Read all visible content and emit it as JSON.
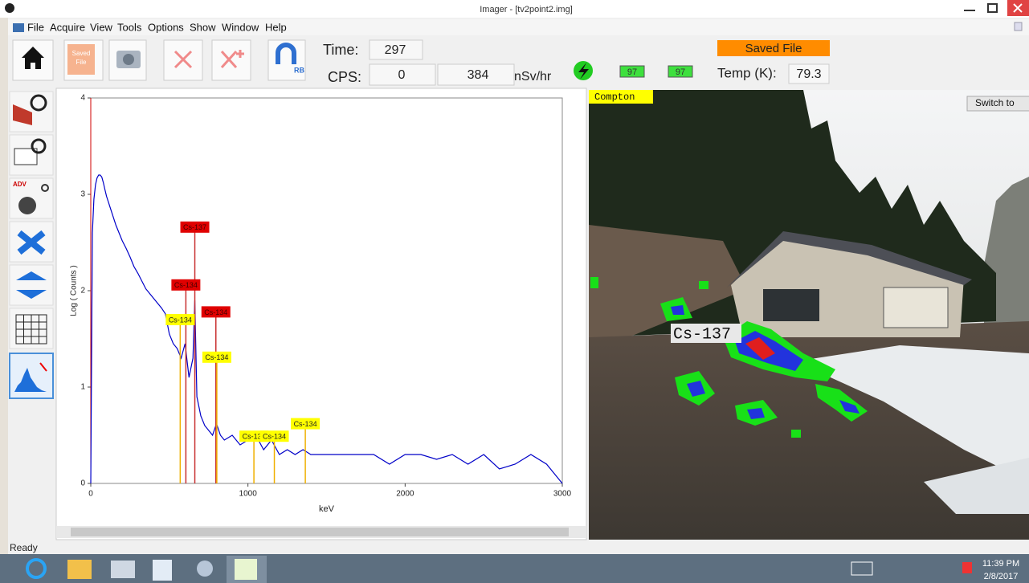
{
  "window": {
    "title": "Imager - [tv2point2.img]"
  },
  "menu": [
    "File",
    "Acquire",
    "View",
    "Tools",
    "Options",
    "Show",
    "Window",
    "Help"
  ],
  "toolbar": {
    "saved_icon": [
      "Saved",
      "File"
    ],
    "rb_icon": "RB",
    "time_label": "Time:",
    "time": 297,
    "cps_label": "CPS:",
    "cps": 0,
    "dose": 384,
    "dose_unit": "nSv/hr",
    "battery": [
      97,
      97
    ],
    "status_badge": "Saved File",
    "temp_label": "Temp (K):",
    "temp": 79.3
  },
  "sidebar": {
    "adv": "ADV"
  },
  "chart_data": {
    "type": "line",
    "xlabel": "keV",
    "ylabel": "Log ( Counts )",
    "x": [
      0,
      10,
      20,
      30,
      40,
      50,
      60,
      70,
      80,
      90,
      100,
      120,
      140,
      160,
      180,
      200,
      225,
      250,
      275,
      300,
      325,
      350,
      375,
      400,
      425,
      450,
      475,
      500,
      525,
      550,
      575,
      600,
      625,
      650,
      662,
      675,
      700,
      725,
      750,
      775,
      800,
      825,
      850,
      900,
      950,
      1000,
      1050,
      1100,
      1150,
      1200,
      1250,
      1300,
      1350,
      1400,
      1450,
      1500,
      1600,
      1700,
      1800,
      1900,
      2000,
      2100,
      2200,
      2300,
      2400,
      2500,
      2600,
      2700,
      2800,
      2900,
      3000
    ],
    "series": [
      {
        "color": "#0000c8",
        "values": [
          0,
          2.6,
          2.95,
          3.1,
          3.17,
          3.2,
          3.2,
          3.18,
          3.12,
          3.05,
          2.98,
          2.88,
          2.78,
          2.68,
          2.6,
          2.52,
          2.44,
          2.35,
          2.25,
          2.18,
          2.1,
          2.02,
          1.97,
          1.92,
          1.87,
          1.82,
          1.76,
          1.55,
          1.45,
          1.4,
          1.3,
          1.45,
          1.1,
          1.3,
          1.9,
          0.9,
          0.7,
          0.6,
          0.55,
          0.5,
          0.62,
          0.5,
          0.45,
          0.5,
          0.4,
          0.45,
          0.5,
          0.35,
          0.45,
          0.3,
          0.35,
          0.3,
          0.35,
          0.3,
          0.3,
          0.3,
          0.3,
          0.3,
          0.3,
          0.2,
          0.3,
          0.3,
          0.25,
          0.3,
          0.2,
          0.3,
          0.15,
          0.2,
          0.3,
          0.2,
          0
        ]
      }
    ],
    "xlim": [
      0,
      3000
    ],
    "ylim": [
      0,
      4
    ],
    "xticks": [
      0,
      1000,
      2000,
      3000
    ],
    "yticks": [
      0,
      1,
      2,
      3,
      4
    ],
    "annotations": [
      {
        "text": "Cs-137",
        "x": 662,
        "y": 2.66,
        "color": "#e00000"
      },
      {
        "text": "Cs-134",
        "x": 605,
        "y": 2.06,
        "color": "#e00000"
      },
      {
        "text": "Cs-134",
        "x": 796,
        "y": 1.78,
        "color": "#e00000"
      },
      {
        "text": "Cs-134",
        "x": 569,
        "y": 1.7,
        "color": "#ffff00"
      },
      {
        "text": "Cs-134",
        "x": 802,
        "y": 1.31,
        "color": "#ffff00"
      },
      {
        "text": "Cs-134",
        "x": 1038,
        "y": 0.49,
        "color": "#ffff00"
      },
      {
        "text": "Cs-134",
        "x": 1168,
        "y": 0.49,
        "color": "#ffff00"
      },
      {
        "text": "Cs-134",
        "x": 1365,
        "y": 0.62,
        "color": "#ffff00"
      }
    ]
  },
  "camera": {
    "mode": "Compton",
    "button": "Switch to",
    "source": "Cs-137"
  },
  "status": "Ready",
  "taskbar": {
    "time": "11:39 PM",
    "date": "2/8/2017"
  }
}
